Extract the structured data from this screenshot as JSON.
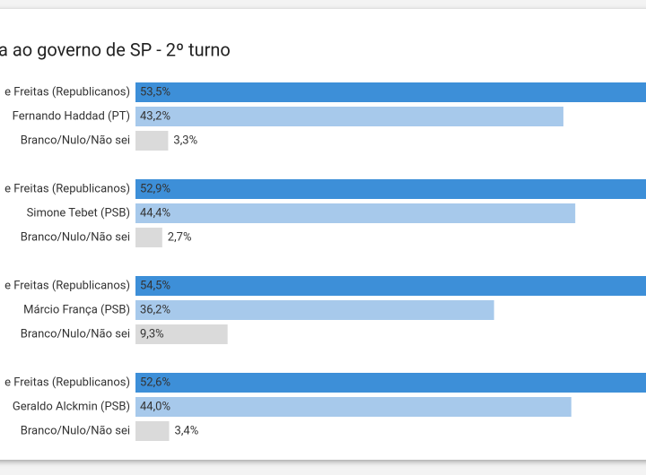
{
  "chart_data": {
    "type": "bar",
    "title": "a ao governo de SP - 2º turno",
    "colors": [
      "#3d8fd8",
      "#a7c9eb",
      "#dadada"
    ],
    "groups": [
      {
        "categories": [
          "e Freitas (Republicanos)",
          "Fernando Haddad (PT)",
          "Branco/Nulo/Não sei"
        ],
        "values": [
          53.5,
          43.2,
          3.3
        ],
        "value_labels": [
          "53,5%",
          "43,2%",
          "3,3%"
        ]
      },
      {
        "categories": [
          "e Freitas (Republicanos)",
          "Simone Tebet (PSB)",
          "Branco/Nulo/Não sei"
        ],
        "values": [
          52.9,
          44.4,
          2.7
        ],
        "value_labels": [
          "52,9%",
          "44,4%",
          "2,7%"
        ]
      },
      {
        "categories": [
          "e Freitas (Republicanos)",
          "Márcio França (PSB)",
          "Branco/Nulo/Não sei"
        ],
        "values": [
          54.5,
          36.2,
          9.3
        ],
        "value_labels": [
          "54,5%",
          "36,2%",
          "9,3%"
        ]
      },
      {
        "categories": [
          "e Freitas (Republicanos)",
          "Geraldo Alckmin (PSB)",
          "Branco/Nulo/Não sei"
        ],
        "values": [
          52.6,
          44.0,
          3.4
        ],
        "value_labels": [
          "52,6%",
          "44,0%",
          "3,4%"
        ]
      }
    ]
  }
}
